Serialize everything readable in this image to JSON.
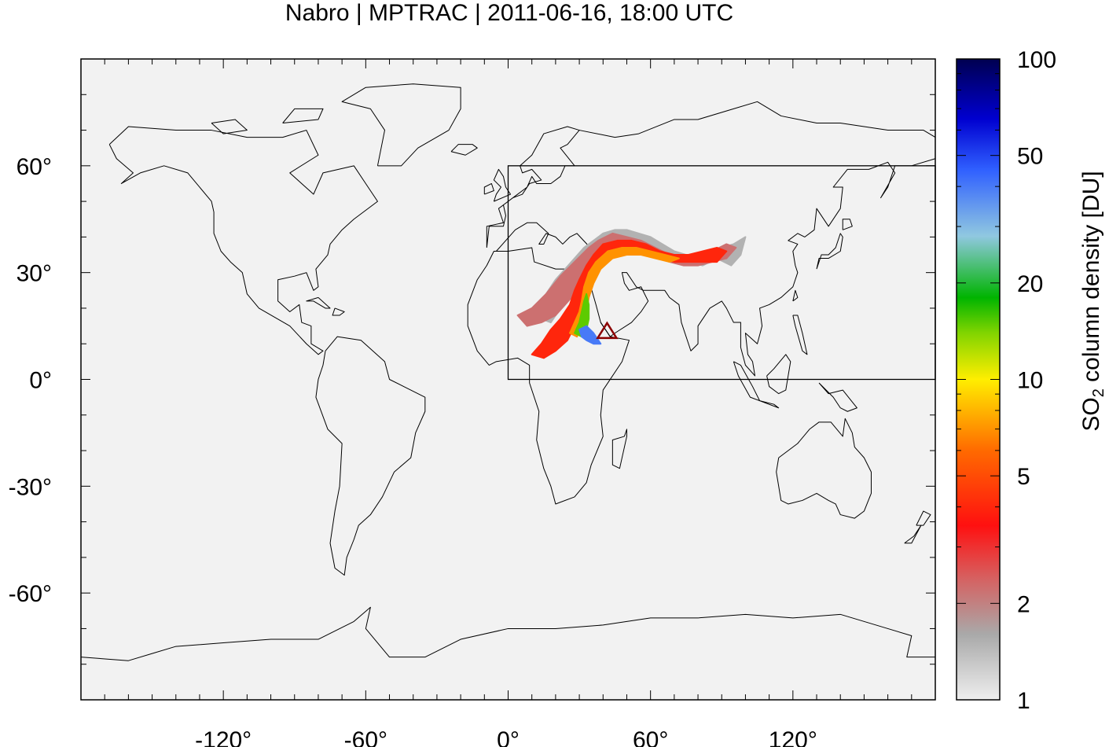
{
  "title": "Nabro | MPTRAC | 2011-06-16, 18:00 UTC",
  "colors": {
    "background": "#f2f2f2",
    "coast": "#000000",
    "volcano": "#8b0000"
  },
  "map": {
    "lon_range": [
      -180,
      180
    ],
    "lat_range": [
      -90,
      90
    ],
    "x_ticks": [
      {
        "value": -120,
        "label": "-120°"
      },
      {
        "value": -60,
        "label": "-60°"
      },
      {
        "value": 0,
        "label": "0°"
      },
      {
        "value": 60,
        "label": "60°"
      },
      {
        "value": 120,
        "label": "120°"
      }
    ],
    "y_ticks": [
      {
        "value": 60,
        "label": "60°"
      },
      {
        "value": 30,
        "label": "30°"
      },
      {
        "value": 0,
        "label": "0°"
      },
      {
        "value": -30,
        "label": "-30°"
      },
      {
        "value": -60,
        "label": "-60°"
      }
    ],
    "region_box": {
      "lon": [
        0,
        180
      ],
      "lat": [
        0,
        60
      ]
    },
    "volcano": {
      "name": "Nabro",
      "lon": 41.7,
      "lat": 13.4,
      "marker": "triangle"
    }
  },
  "colorbar": {
    "label_main": "SO",
    "label_sub": "2",
    "label_rest": " column density [DU]",
    "scale": "log",
    "range": [
      1,
      100
    ],
    "ticks": [
      {
        "value": 1,
        "label": "1"
      },
      {
        "value": 2,
        "label": "2"
      },
      {
        "value": 5,
        "label": "5"
      },
      {
        "value": 10,
        "label": "10"
      },
      {
        "value": 20,
        "label": "20"
      },
      {
        "value": 50,
        "label": "50"
      },
      {
        "value": 100,
        "label": "100"
      }
    ],
    "stops": [
      {
        "value": 1,
        "color": "#eeeeee"
      },
      {
        "value": 1.6,
        "color": "#a9a9a9"
      },
      {
        "value": 2.4,
        "color": "#d66060"
      },
      {
        "value": 3.5,
        "color": "#ff1010"
      },
      {
        "value": 6,
        "color": "#ff6a00"
      },
      {
        "value": 10,
        "color": "#ffee00"
      },
      {
        "value": 14,
        "color": "#80d400"
      },
      {
        "value": 18,
        "color": "#00b400"
      },
      {
        "value": 28,
        "color": "#90c8e0"
      },
      {
        "value": 45,
        "color": "#3060ff"
      },
      {
        "value": 65,
        "color": "#0000d0"
      },
      {
        "value": 100,
        "color": "#000050"
      }
    ]
  },
  "plume": [
    {
      "level": 1.5,
      "points": [
        [
          12,
          19
        ],
        [
          16,
          24
        ],
        [
          20,
          28
        ],
        [
          24,
          31
        ],
        [
          28,
          34
        ],
        [
          32,
          37
        ],
        [
          36,
          39
        ],
        [
          40,
          41
        ],
        [
          45,
          42
        ],
        [
          50,
          42
        ],
        [
          55,
          41
        ],
        [
          60,
          40
        ],
        [
          65,
          38
        ],
        [
          70,
          36
        ],
        [
          75,
          35
        ],
        [
          80,
          34
        ],
        [
          85,
          35
        ],
        [
          90,
          37
        ],
        [
          95,
          38
        ],
        [
          100,
          40
        ],
        [
          98,
          35
        ],
        [
          94,
          32
        ],
        [
          88,
          34
        ],
        [
          82,
          32
        ],
        [
          76,
          33
        ],
        [
          70,
          34
        ],
        [
          64,
          36
        ],
        [
          58,
          38
        ],
        [
          52,
          39
        ],
        [
          46,
          39
        ],
        [
          42,
          37
        ],
        [
          38,
          34
        ],
        [
          34,
          31
        ],
        [
          30,
          28
        ],
        [
          26,
          25
        ],
        [
          22,
          20
        ],
        [
          18,
          16
        ],
        [
          14,
          17
        ]
      ]
    },
    {
      "level": 2.2,
      "points": [
        [
          4,
          18
        ],
        [
          10,
          20
        ],
        [
          16,
          24
        ],
        [
          22,
          29
        ],
        [
          28,
          33
        ],
        [
          34,
          37
        ],
        [
          38,
          39
        ],
        [
          44,
          41
        ],
        [
          50,
          40
        ],
        [
          56,
          39
        ],
        [
          62,
          37
        ],
        [
          68,
          35
        ],
        [
          74,
          34
        ],
        [
          80,
          34
        ],
        [
          86,
          36
        ],
        [
          92,
          38
        ],
        [
          96,
          37
        ],
        [
          92,
          34
        ],
        [
          86,
          33
        ],
        [
          80,
          32
        ],
        [
          74,
          32
        ],
        [
          68,
          33
        ],
        [
          62,
          35
        ],
        [
          56,
          36
        ],
        [
          50,
          37
        ],
        [
          44,
          36
        ],
        [
          40,
          33
        ],
        [
          36,
          30
        ],
        [
          32,
          27
        ],
        [
          28,
          24
        ],
        [
          24,
          21
        ],
        [
          20,
          18
        ],
        [
          14,
          16
        ],
        [
          8,
          15
        ]
      ]
    },
    {
      "level": 4,
      "points": [
        [
          10,
          7
        ],
        [
          14,
          10
        ],
        [
          18,
          14
        ],
        [
          22,
          17
        ],
        [
          26,
          21
        ],
        [
          28,
          25
        ],
        [
          30,
          28
        ],
        [
          33,
          32
        ],
        [
          36,
          35
        ],
        [
          40,
          38
        ],
        [
          46,
          39
        ],
        [
          52,
          39
        ],
        [
          58,
          38
        ],
        [
          64,
          36
        ],
        [
          70,
          35
        ],
        [
          76,
          35
        ],
        [
          82,
          36
        ],
        [
          88,
          37
        ],
        [
          92,
          36
        ],
        [
          88,
          33
        ],
        [
          82,
          33
        ],
        [
          76,
          33
        ],
        [
          70,
          33
        ],
        [
          64,
          34
        ],
        [
          58,
          35
        ],
        [
          52,
          36
        ],
        [
          46,
          36
        ],
        [
          41,
          34
        ],
        [
          37,
          31
        ],
        [
          34,
          27
        ],
        [
          32,
          23
        ],
        [
          30,
          19
        ],
        [
          28,
          15
        ],
        [
          25,
          11
        ],
        [
          20,
          8
        ],
        [
          15,
          6
        ]
      ]
    },
    {
      "level": 7,
      "points": [
        [
          26,
          13
        ],
        [
          28,
          16
        ],
        [
          30,
          19
        ],
        [
          31,
          22
        ],
        [
          32,
          26
        ],
        [
          34,
          30
        ],
        [
          37,
          33
        ],
        [
          42,
          36
        ],
        [
          48,
          37
        ],
        [
          54,
          37
        ],
        [
          60,
          36
        ],
        [
          66,
          35
        ],
        [
          72,
          34
        ],
        [
          68,
          33
        ],
        [
          62,
          34
        ],
        [
          56,
          35
        ],
        [
          50,
          35
        ],
        [
          44,
          34
        ],
        [
          39,
          31
        ],
        [
          36,
          27
        ],
        [
          34,
          23
        ],
        [
          33,
          19
        ],
        [
          31,
          15
        ],
        [
          29,
          12
        ]
      ]
    },
    {
      "level": 15,
      "points": [
        [
          28,
          13
        ],
        [
          30,
          16
        ],
        [
          31,
          19
        ],
        [
          32,
          22
        ],
        [
          33,
          24
        ],
        [
          34,
          21
        ],
        [
          34,
          17
        ],
        [
          33,
          14
        ],
        [
          31,
          12
        ]
      ]
    },
    {
      "level": 40,
      "points": [
        [
          30,
          14
        ],
        [
          33,
          15
        ],
        [
          36,
          13
        ],
        [
          38,
          11
        ],
        [
          39,
          10
        ],
        [
          36,
          10
        ],
        [
          33,
          11
        ],
        [
          31,
          12
        ]
      ]
    }
  ]
}
